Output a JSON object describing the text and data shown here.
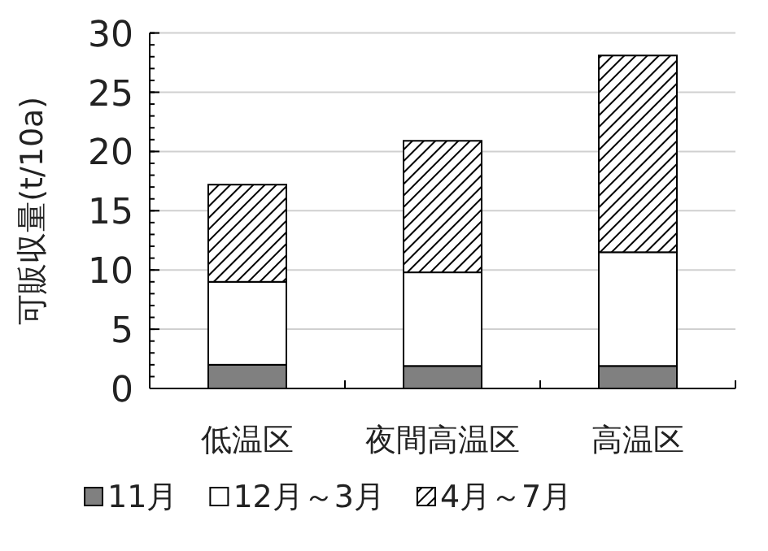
{
  "chart_data": {
    "type": "bar",
    "stacked": true,
    "ylabel": "可販収量(t/10a)",
    "categories": [
      "低温区",
      "夜間高温区",
      "高温区"
    ],
    "series": [
      {
        "name": "11月",
        "color": "#808080",
        "values": [
          2.0,
          1.9,
          1.9
        ]
      },
      {
        "name": "12月～3月",
        "color": "#ffffff",
        "values": [
          7.0,
          7.9,
          9.6
        ]
      },
      {
        "name": "4月～7月",
        "color": "#000000",
        "values": [
          8.2,
          11.1,
          16.6
        ]
      }
    ],
    "ylim": [
      0,
      30
    ],
    "yticks": [
      0,
      5,
      10,
      15,
      20,
      25,
      30
    ],
    "grid": "y",
    "legend": "bottom"
  }
}
